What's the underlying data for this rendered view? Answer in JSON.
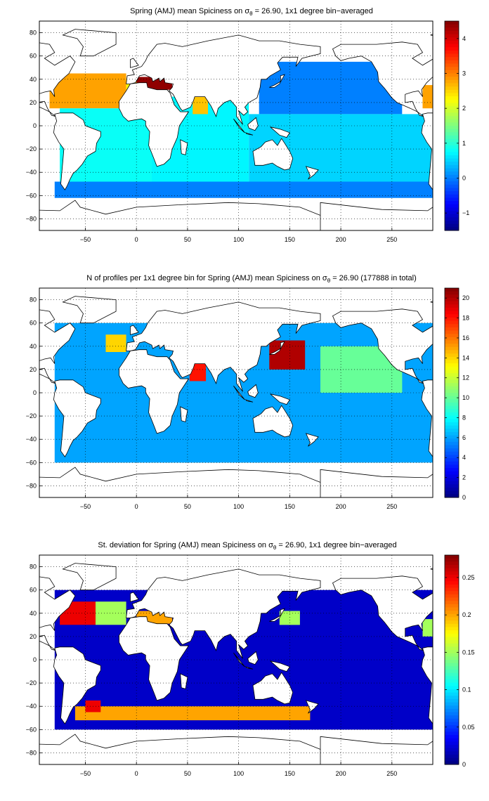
{
  "figure": {
    "panels": [
      {
        "title": "Spring (AMJ) mean Spiciness on σθ = 26.90, 1x1 degree bin−averaged",
        "title_pre": "Spring (AMJ) mean Spiciness on σ",
        "title_sub": "θ",
        "title_post": " = 26.90, 1x1 degree bin−averaged",
        "colorbar_ticks": [
          "4",
          "3",
          "2",
          "1",
          "0",
          "−1"
        ]
      },
      {
        "title": "N of profiles per 1x1 degree bin for Spring (AMJ) mean Spiciness on σθ = 26.90 (177888 in total)",
        "title_pre": "N of profiles per 1x1 degree bin for Spring (AMJ) mean Spiciness on σ",
        "title_sub": "θ",
        "title_post": " = 26.90 (177888 in total)",
        "colorbar_ticks": [
          "20",
          "18",
          "16",
          "14",
          "12",
          "10",
          "8",
          "6",
          "4",
          "2",
          "0"
        ]
      },
      {
        "title": "St. deviation for Spring (AMJ) mean Spiciness on σθ = 26.90, 1x1 degree bin−averaged",
        "title_pre": "St. deviation for Spring (AMJ) mean Spiciness on σ",
        "title_sub": "θ",
        "title_post": " = 26.90, 1x1 degree bin−averaged",
        "colorbar_ticks": [
          "0.25",
          "0.2",
          "0.15",
          "0.1",
          "0.05",
          "0"
        ]
      }
    ],
    "x_ticks": [
      "−50",
      "0",
      "50",
      "100",
      "150",
      "200",
      "250"
    ],
    "y_ticks": [
      "80",
      "60",
      "40",
      "20",
      "0",
      "−20",
      "−40",
      "−60",
      "−80"
    ]
  },
  "chart_data": [
    {
      "type": "heatmap",
      "title": "Spring (AMJ) mean Spiciness on σθ = 26.90, 1x1 degree bin−averaged",
      "xlim": [
        -95,
        290
      ],
      "ylim": [
        -90,
        90
      ],
      "colorbar_range": [
        -1.5,
        4.5
      ],
      "colormap": "jet",
      "x_ticks": [
        -50,
        0,
        50,
        100,
        150,
        200,
        250
      ],
      "y_ticks": [
        80,
        60,
        40,
        20,
        0,
        -20,
        -40,
        -60,
        -80
      ],
      "colorbar_ticks": [
        4,
        3,
        2,
        1,
        0,
        -1
      ],
      "grid": true,
      "regions": [
        {
          "lon": [
            -85,
            -10
          ],
          "lat": [
            15,
            45
          ],
          "value": 2.8
        },
        {
          "lon": [
            -10,
            25
          ],
          "lat": [
            15,
            40
          ],
          "value": 2.3
        },
        {
          "lon": [
            0,
            35
          ],
          "lat": [
            31,
            42
          ],
          "value": 4.4
        },
        {
          "lon": [
            -75,
            15
          ],
          "lat": [
            -50,
            15
          ],
          "value": 0.8
        },
        {
          "lon": [
            15,
            110
          ],
          "lat": [
            -50,
            25
          ],
          "value": 0.7
        },
        {
          "lon": [
            55,
            70
          ],
          "lat": [
            10,
            25
          ],
          "value": 2.6
        },
        {
          "lon": [
            120,
            260
          ],
          "lat": [
            10,
            55
          ],
          "value": 0.0
        },
        {
          "lon": [
            110,
            290
          ],
          "lat": [
            -50,
            10
          ],
          "value": 0.5
        },
        {
          "lon": [
            -80,
            290
          ],
          "lat": [
            -62,
            -48
          ],
          "value": 0.0
        },
        {
          "lon": [
            280,
            290
          ],
          "lat": [
            15,
            35
          ],
          "value": 2.8
        }
      ]
    },
    {
      "type": "heatmap",
      "title": "N of profiles per 1x1 degree bin for Spring (AMJ) mean Spiciness on σθ = 26.90 (177888 in total)",
      "total_profiles": 177888,
      "xlim": [
        -95,
        290
      ],
      "ylim": [
        -90,
        90
      ],
      "colorbar_range": [
        0,
        21
      ],
      "colormap": "jet",
      "x_ticks": [
        -50,
        0,
        50,
        100,
        150,
        200,
        250
      ],
      "y_ticks": [
        80,
        60,
        40,
        20,
        0,
        -20,
        -40,
        -60,
        -80
      ],
      "colorbar_ticks": [
        20,
        18,
        16,
        14,
        12,
        10,
        8,
        6,
        4,
        2,
        0
      ],
      "grid": true,
      "regions": [
        {
          "lon": [
            -80,
            290
          ],
          "lat": [
            -60,
            60
          ],
          "value": 6
        },
        {
          "lon": [
            130,
            165
          ],
          "lat": [
            20,
            45
          ],
          "value": 20
        },
        {
          "lon": [
            52,
            68
          ],
          "lat": [
            10,
            25
          ],
          "value": 18
        },
        {
          "lon": [
            -30,
            -10
          ],
          "lat": [
            35,
            50
          ],
          "value": 14
        },
        {
          "lon": [
            180,
            260
          ],
          "lat": [
            0,
            40
          ],
          "value": 10
        }
      ]
    },
    {
      "type": "heatmap",
      "title": "St. deviation for Spring (AMJ) mean Spiciness on σθ = 26.90, 1x1 degree bin−averaged",
      "xlim": [
        -95,
        290
      ],
      "ylim": [
        -90,
        90
      ],
      "colorbar_range": [
        0,
        0.28
      ],
      "colormap": "jet",
      "x_ticks": [
        -50,
        0,
        50,
        100,
        150,
        200,
        250
      ],
      "y_ticks": [
        80,
        60,
        40,
        20,
        0,
        -20,
        -40,
        -60,
        -80
      ],
      "colorbar_ticks": [
        0.25,
        0.2,
        0.15,
        0.1,
        0.05,
        0
      ],
      "grid": true,
      "regions": [
        {
          "lon": [
            -80,
            290
          ],
          "lat": [
            -60,
            60
          ],
          "value": 0.02
        },
        {
          "lon": [
            -75,
            -40
          ],
          "lat": [
            30,
            50
          ],
          "value": 0.25
        },
        {
          "lon": [
            -40,
            -10
          ],
          "lat": [
            30,
            50
          ],
          "value": 0.15
        },
        {
          "lon": [
            0,
            35
          ],
          "lat": [
            31,
            42
          ],
          "value": 0.2
        },
        {
          "lon": [
            -60,
            170
          ],
          "lat": [
            -52,
            -40
          ],
          "value": 0.2
        },
        {
          "lon": [
            140,
            160
          ],
          "lat": [
            30,
            42
          ],
          "value": 0.15
        },
        {
          "lon": [
            -50,
            -35
          ],
          "lat": [
            -45,
            -35
          ],
          "value": 0.25
        },
        {
          "lon": [
            280,
            290
          ],
          "lat": [
            20,
            35
          ],
          "value": 0.15
        }
      ]
    }
  ]
}
